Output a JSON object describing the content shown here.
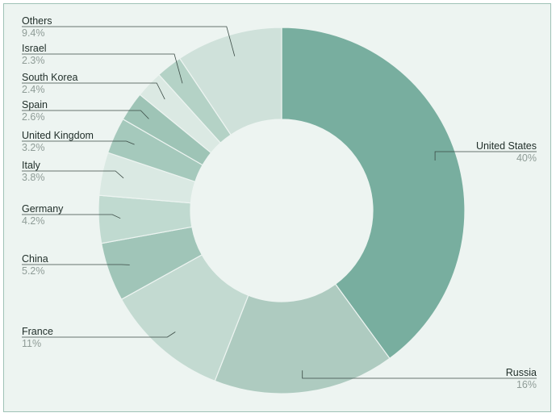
{
  "chart_data": {
    "type": "pie",
    "variant": "donut",
    "title": "",
    "slices": [
      {
        "label": "United States",
        "value": 40,
        "display": "40%",
        "color": "#78ae9f"
      },
      {
        "label": "Russia",
        "value": 16,
        "display": "16%",
        "color": "#aecbc0"
      },
      {
        "label": "France",
        "value": 11,
        "display": "11%",
        "color": "#c3dad1"
      },
      {
        "label": "China",
        "value": 5.2,
        "display": "5.2%",
        "color": "#a0c5b8"
      },
      {
        "label": "Germany",
        "value": 4.2,
        "display": "4.2%",
        "color": "#c0dad0"
      },
      {
        "label": "Italy",
        "value": 3.8,
        "display": "3.8%",
        "color": "#dae9e3"
      },
      {
        "label": "United Kingdom",
        "value": 3.2,
        "display": "3.2%",
        "color": "#a5c9bc"
      },
      {
        "label": "Spain",
        "value": 2.6,
        "display": "2.6%",
        "color": "#9ec4b6"
      },
      {
        "label": "South Korea",
        "value": 2.4,
        "display": "2.4%",
        "color": "#dbe9e3"
      },
      {
        "label": "Israel",
        "value": 2.3,
        "display": "2.3%",
        "color": "#b4d2c6"
      },
      {
        "label": "Others",
        "value": 9.4,
        "display": "9.4%",
        "color": "#cfe1da"
      }
    ]
  }
}
